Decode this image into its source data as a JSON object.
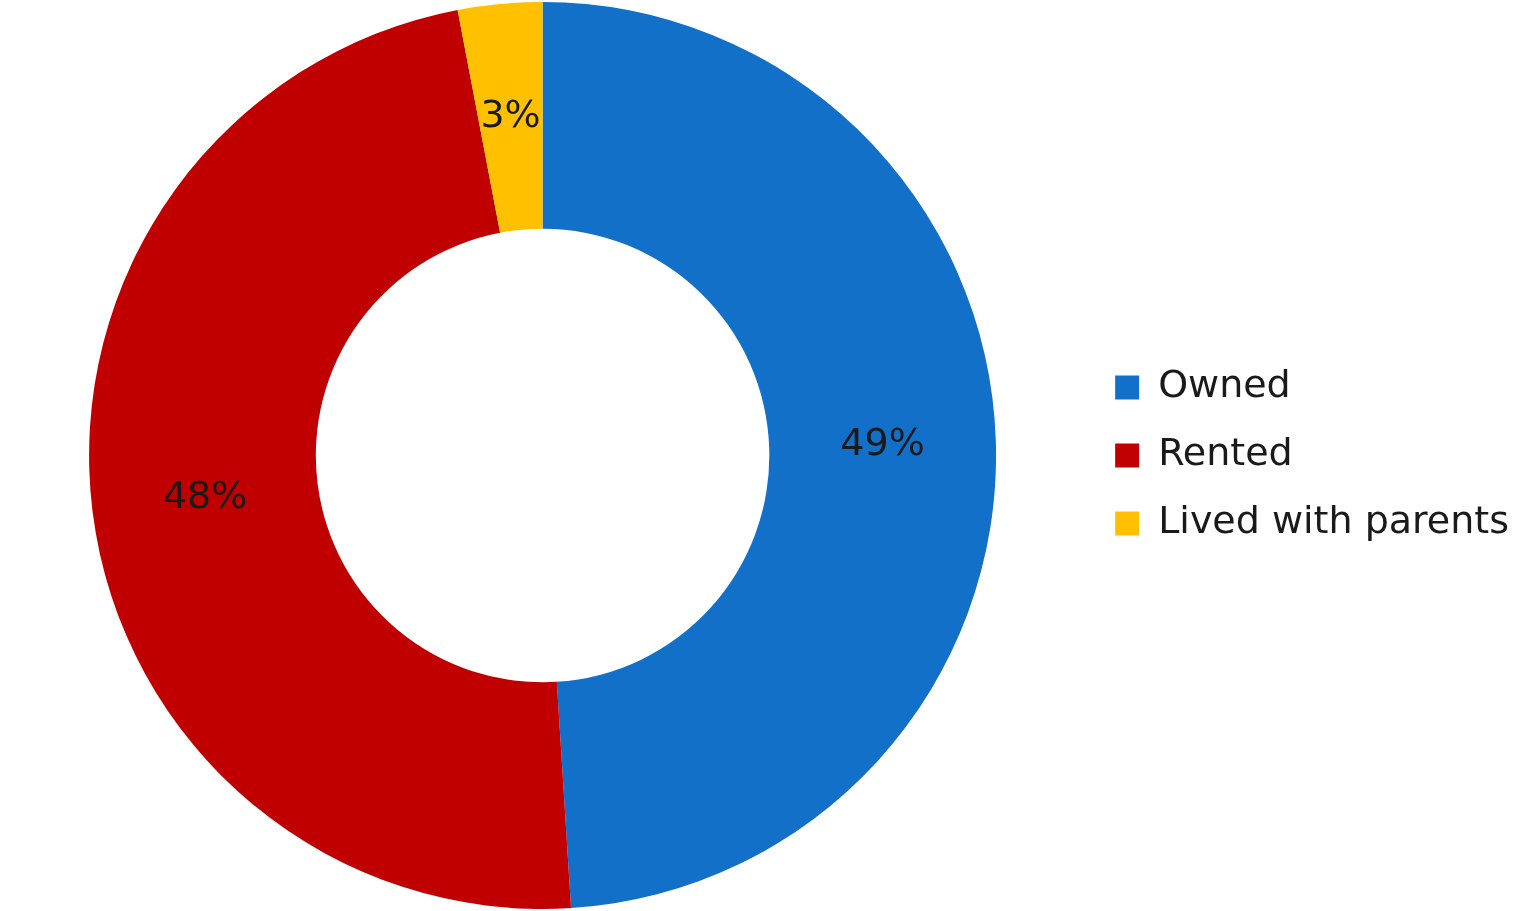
{
  "chart_data": {
    "type": "donut",
    "categories": [
      "Owned",
      "Rented",
      "Lived with parents"
    ],
    "values": [
      49,
      48,
      3
    ],
    "colors": [
      "#1270c8",
      "#c00000",
      "#ffc000"
    ],
    "value_labels": [
      "49%",
      "48%",
      "3%"
    ],
    "legend": "right"
  }
}
